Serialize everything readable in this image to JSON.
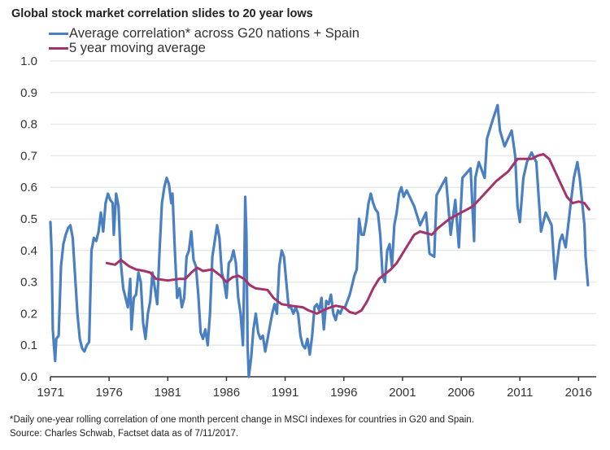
{
  "chart_data": {
    "type": "line",
    "title": "Global stock market correlation slides to 20 year lows",
    "xlabel": "",
    "ylabel": "",
    "xlim": [
      1971,
      2017.5
    ],
    "ylim": [
      0,
      1.0
    ],
    "grid": true,
    "legend_placement": "top-left",
    "x_ticks": [
      "1971",
      "1976",
      "1981",
      "1986",
      "1991",
      "1996",
      "2001",
      "2006",
      "2011",
      "2016"
    ],
    "y_ticks": [
      "0.0",
      "0.1",
      "0.2",
      "0.3",
      "0.4",
      "0.5",
      "0.6",
      "0.7",
      "0.8",
      "0.9",
      "1.0"
    ],
    "series": [
      {
        "name": "Average correlation* across G20 nations + Spain",
        "color": "#4a7fc1",
        "points": [
          [
            1971.0,
            0.49
          ],
          [
            1971.1,
            0.4
          ],
          [
            1971.2,
            0.15
          ],
          [
            1971.3,
            0.1
          ],
          [
            1971.4,
            0.05
          ],
          [
            1971.5,
            0.12
          ],
          [
            1971.7,
            0.13
          ],
          [
            1971.9,
            0.35
          ],
          [
            1972.1,
            0.42
          ],
          [
            1972.3,
            0.45
          ],
          [
            1972.5,
            0.47
          ],
          [
            1972.7,
            0.48
          ],
          [
            1972.9,
            0.44
          ],
          [
            1973.1,
            0.32
          ],
          [
            1973.3,
            0.2
          ],
          [
            1973.5,
            0.12
          ],
          [
            1973.7,
            0.09
          ],
          [
            1973.9,
            0.08
          ],
          [
            1974.1,
            0.1
          ],
          [
            1974.3,
            0.11
          ],
          [
            1974.5,
            0.4
          ],
          [
            1974.7,
            0.44
          ],
          [
            1974.9,
            0.43
          ],
          [
            1975.1,
            0.46
          ],
          [
            1975.3,
            0.52
          ],
          [
            1975.5,
            0.46
          ],
          [
            1975.7,
            0.55
          ],
          [
            1975.9,
            0.58
          ],
          [
            1976.1,
            0.56
          ],
          [
            1976.3,
            0.55
          ],
          [
            1976.4,
            0.45
          ],
          [
            1976.6,
            0.58
          ],
          [
            1976.8,
            0.54
          ],
          [
            1977.0,
            0.36
          ],
          [
            1977.2,
            0.28
          ],
          [
            1977.4,
            0.25
          ],
          [
            1977.6,
            0.22
          ],
          [
            1977.8,
            0.31
          ],
          [
            1977.9,
            0.15
          ],
          [
            1978.1,
            0.25
          ],
          [
            1978.3,
            0.26
          ],
          [
            1978.5,
            0.33
          ],
          [
            1978.7,
            0.3
          ],
          [
            1978.9,
            0.17
          ],
          [
            1979.1,
            0.12
          ],
          [
            1979.3,
            0.2
          ],
          [
            1979.5,
            0.24
          ],
          [
            1979.7,
            0.33
          ],
          [
            1979.9,
            0.28
          ],
          [
            1980.1,
            0.23
          ],
          [
            1980.3,
            0.4
          ],
          [
            1980.5,
            0.55
          ],
          [
            1980.7,
            0.6
          ],
          [
            1980.9,
            0.63
          ],
          [
            1981.1,
            0.61
          ],
          [
            1981.3,
            0.55
          ],
          [
            1981.4,
            0.58
          ],
          [
            1981.6,
            0.4
          ],
          [
            1981.8,
            0.25
          ],
          [
            1982.0,
            0.28
          ],
          [
            1982.2,
            0.22
          ],
          [
            1982.4,
            0.25
          ],
          [
            1982.6,
            0.38
          ],
          [
            1982.8,
            0.4
          ],
          [
            1983.0,
            0.46
          ],
          [
            1983.2,
            0.37
          ],
          [
            1983.4,
            0.35
          ],
          [
            1983.6,
            0.26
          ],
          [
            1983.8,
            0.14
          ],
          [
            1984.0,
            0.12
          ],
          [
            1984.2,
            0.15
          ],
          [
            1984.4,
            0.1
          ],
          [
            1984.6,
            0.2
          ],
          [
            1984.8,
            0.38
          ],
          [
            1985.0,
            0.43
          ],
          [
            1985.2,
            0.48
          ],
          [
            1985.4,
            0.44
          ],
          [
            1985.6,
            0.33
          ],
          [
            1985.8,
            0.3
          ],
          [
            1986.0,
            0.25
          ],
          [
            1986.2,
            0.36
          ],
          [
            1986.4,
            0.37
          ],
          [
            1986.6,
            0.4
          ],
          [
            1986.8,
            0.36
          ],
          [
            1987.0,
            0.25
          ],
          [
            1987.2,
            0.2
          ],
          [
            1987.4,
            0.1
          ],
          [
            1987.5,
            0.3
          ],
          [
            1987.6,
            0.57
          ],
          [
            1987.7,
            0.45
          ],
          [
            1987.8,
            0.1
          ],
          [
            1987.9,
            0.0
          ],
          [
            1988.1,
            0.06
          ],
          [
            1988.3,
            0.15
          ],
          [
            1988.5,
            0.2
          ],
          [
            1988.7,
            0.14
          ],
          [
            1988.9,
            0.12
          ],
          [
            1989.1,
            0.13
          ],
          [
            1989.3,
            0.08
          ],
          [
            1989.5,
            0.12
          ],
          [
            1989.7,
            0.16
          ],
          [
            1989.9,
            0.2
          ],
          [
            1990.1,
            0.23
          ],
          [
            1990.3,
            0.2
          ],
          [
            1990.5,
            0.35
          ],
          [
            1990.7,
            0.4
          ],
          [
            1990.9,
            0.38
          ],
          [
            1991.1,
            0.3
          ],
          [
            1991.3,
            0.22
          ],
          [
            1991.5,
            0.22
          ],
          [
            1991.7,
            0.2
          ],
          [
            1991.9,
            0.22
          ],
          [
            1992.1,
            0.2
          ],
          [
            1992.3,
            0.13
          ],
          [
            1992.5,
            0.1
          ],
          [
            1992.7,
            0.09
          ],
          [
            1992.9,
            0.12
          ],
          [
            1993.1,
            0.07
          ],
          [
            1993.3,
            0.13
          ],
          [
            1993.5,
            0.22
          ],
          [
            1993.7,
            0.23
          ],
          [
            1993.9,
            0.21
          ],
          [
            1994.1,
            0.25
          ],
          [
            1994.3,
            0.15
          ],
          [
            1994.5,
            0.24
          ],
          [
            1994.7,
            0.23
          ],
          [
            1994.9,
            0.26
          ],
          [
            1995.1,
            0.2
          ],
          [
            1995.3,
            0.18
          ],
          [
            1995.5,
            0.21
          ],
          [
            1995.7,
            0.2
          ],
          [
            1995.9,
            0.22
          ],
          [
            1996.1,
            0.22
          ],
          [
            1996.3,
            0.24
          ],
          [
            1996.5,
            0.26
          ],
          [
            1996.7,
            0.29
          ],
          [
            1996.9,
            0.32
          ],
          [
            1997.1,
            0.34
          ],
          [
            1997.3,
            0.5
          ],
          [
            1997.5,
            0.45
          ],
          [
            1997.7,
            0.45
          ],
          [
            1997.9,
            0.49
          ],
          [
            1998.1,
            0.55
          ],
          [
            1998.3,
            0.58
          ],
          [
            1998.5,
            0.55
          ],
          [
            1998.7,
            0.53
          ],
          [
            1998.9,
            0.52
          ],
          [
            1999.1,
            0.45
          ],
          [
            1999.3,
            0.32
          ],
          [
            1999.5,
            0.3
          ],
          [
            1999.7,
            0.4
          ],
          [
            1999.9,
            0.42
          ],
          [
            2000.1,
            0.35
          ],
          [
            2000.3,
            0.48
          ],
          [
            2000.5,
            0.52
          ],
          [
            2000.7,
            0.58
          ],
          [
            2000.9,
            0.6
          ],
          [
            2001.1,
            0.57
          ],
          [
            2001.35,
            0.59
          ],
          [
            2002.0,
            0.54
          ],
          [
            2002.5,
            0.48
          ],
          [
            2003.0,
            0.52
          ],
          [
            2003.3,
            0.39
          ],
          [
            2003.7,
            0.38
          ],
          [
            2003.9,
            0.575
          ],
          [
            2004.4,
            0.61
          ],
          [
            2004.7,
            0.63
          ],
          [
            2005.1,
            0.45
          ],
          [
            2005.5,
            0.56
          ],
          [
            2005.8,
            0.41
          ],
          [
            2006.1,
            0.63
          ],
          [
            2006.8,
            0.66
          ],
          [
            2007.1,
            0.43
          ],
          [
            2007.2,
            0.63
          ],
          [
            2007.5,
            0.68
          ],
          [
            2008.0,
            0.63
          ],
          [
            2008.2,
            0.755
          ],
          [
            2008.7,
            0.815
          ],
          [
            2009.1,
            0.86
          ],
          [
            2009.3,
            0.78
          ],
          [
            2009.7,
            0.73
          ],
          [
            2010.3,
            0.78
          ],
          [
            2010.6,
            0.7
          ],
          [
            2010.8,
            0.54
          ],
          [
            2011.0,
            0.49
          ],
          [
            2011.3,
            0.63
          ],
          [
            2011.6,
            0.68
          ],
          [
            2012.0,
            0.71
          ],
          [
            2012.4,
            0.68
          ],
          [
            2012.8,
            0.46
          ],
          [
            2013.2,
            0.52
          ],
          [
            2013.7,
            0.48
          ],
          [
            2014.0,
            0.31
          ],
          [
            2014.4,
            0.43
          ],
          [
            2014.6,
            0.45
          ],
          [
            2014.9,
            0.41
          ],
          [
            2015.3,
            0.54
          ],
          [
            2015.6,
            0.63
          ],
          [
            2015.9,
            0.68
          ],
          [
            2016.1,
            0.63
          ],
          [
            2016.5,
            0.48
          ],
          [
            2016.6,
            0.38
          ],
          [
            2016.8,
            0.29
          ]
        ]
      },
      {
        "name": "5 year moving average",
        "color": "#a3336b",
        "points": [
          [
            1975.8,
            0.36
          ],
          [
            1976.5,
            0.355
          ],
          [
            1977.0,
            0.37
          ],
          [
            1977.7,
            0.35
          ],
          [
            1978.3,
            0.34
          ],
          [
            1979.0,
            0.335
          ],
          [
            1979.5,
            0.33
          ],
          [
            1980.0,
            0.31
          ],
          [
            1981.0,
            0.305
          ],
          [
            1982.0,
            0.31
          ],
          [
            1982.5,
            0.31
          ],
          [
            1983.0,
            0.33
          ],
          [
            1983.5,
            0.345
          ],
          [
            1984.0,
            0.335
          ],
          [
            1984.8,
            0.34
          ],
          [
            1985.5,
            0.32
          ],
          [
            1986.0,
            0.3
          ],
          [
            1986.5,
            0.315
          ],
          [
            1987.0,
            0.32
          ],
          [
            1987.5,
            0.31
          ],
          [
            1988.0,
            0.29
          ],
          [
            1988.5,
            0.28
          ],
          [
            1989.5,
            0.275
          ],
          [
            1990.0,
            0.25
          ],
          [
            1990.7,
            0.23
          ],
          [
            1991.5,
            0.225
          ],
          [
            1992.5,
            0.22
          ],
          [
            1993.0,
            0.21
          ],
          [
            1993.7,
            0.2
          ],
          [
            1994.5,
            0.215
          ],
          [
            1995.3,
            0.225
          ],
          [
            1996.0,
            0.22
          ],
          [
            1996.5,
            0.205
          ],
          [
            1997.0,
            0.2
          ],
          [
            1997.5,
            0.21
          ],
          [
            1998.0,
            0.24
          ],
          [
            1998.5,
            0.28
          ],
          [
            1999.0,
            0.31
          ],
          [
            2000.0,
            0.34
          ],
          [
            2000.5,
            0.36
          ],
          [
            2001.0,
            0.39
          ],
          [
            2001.5,
            0.42
          ],
          [
            2002.0,
            0.45
          ],
          [
            2002.5,
            0.46
          ],
          [
            2003.0,
            0.455
          ],
          [
            2003.5,
            0.45
          ],
          [
            2004.0,
            0.47
          ],
          [
            2005.0,
            0.5
          ],
          [
            2006.0,
            0.52
          ],
          [
            2007.0,
            0.54
          ],
          [
            2008.0,
            0.58
          ],
          [
            2009.0,
            0.62
          ],
          [
            2010.0,
            0.65
          ],
          [
            2010.8,
            0.69
          ],
          [
            2011.5,
            0.69
          ],
          [
            2012.0,
            0.69
          ],
          [
            2012.5,
            0.7
          ],
          [
            2013.0,
            0.705
          ],
          [
            2013.5,
            0.69
          ],
          [
            2014.0,
            0.65
          ],
          [
            2014.5,
            0.61
          ],
          [
            2015.0,
            0.57
          ],
          [
            2015.5,
            0.55
          ],
          [
            2016.0,
            0.555
          ],
          [
            2016.5,
            0.55
          ],
          [
            2016.9,
            0.53
          ]
        ]
      }
    ],
    "footnotes": [
      "*Daily one-year rolling correlation of one month percent change in MSCI indexes for countries in G20 and Spain.",
      "Source: Charles Schwab, Factset data as of 7/11/2017."
    ]
  }
}
